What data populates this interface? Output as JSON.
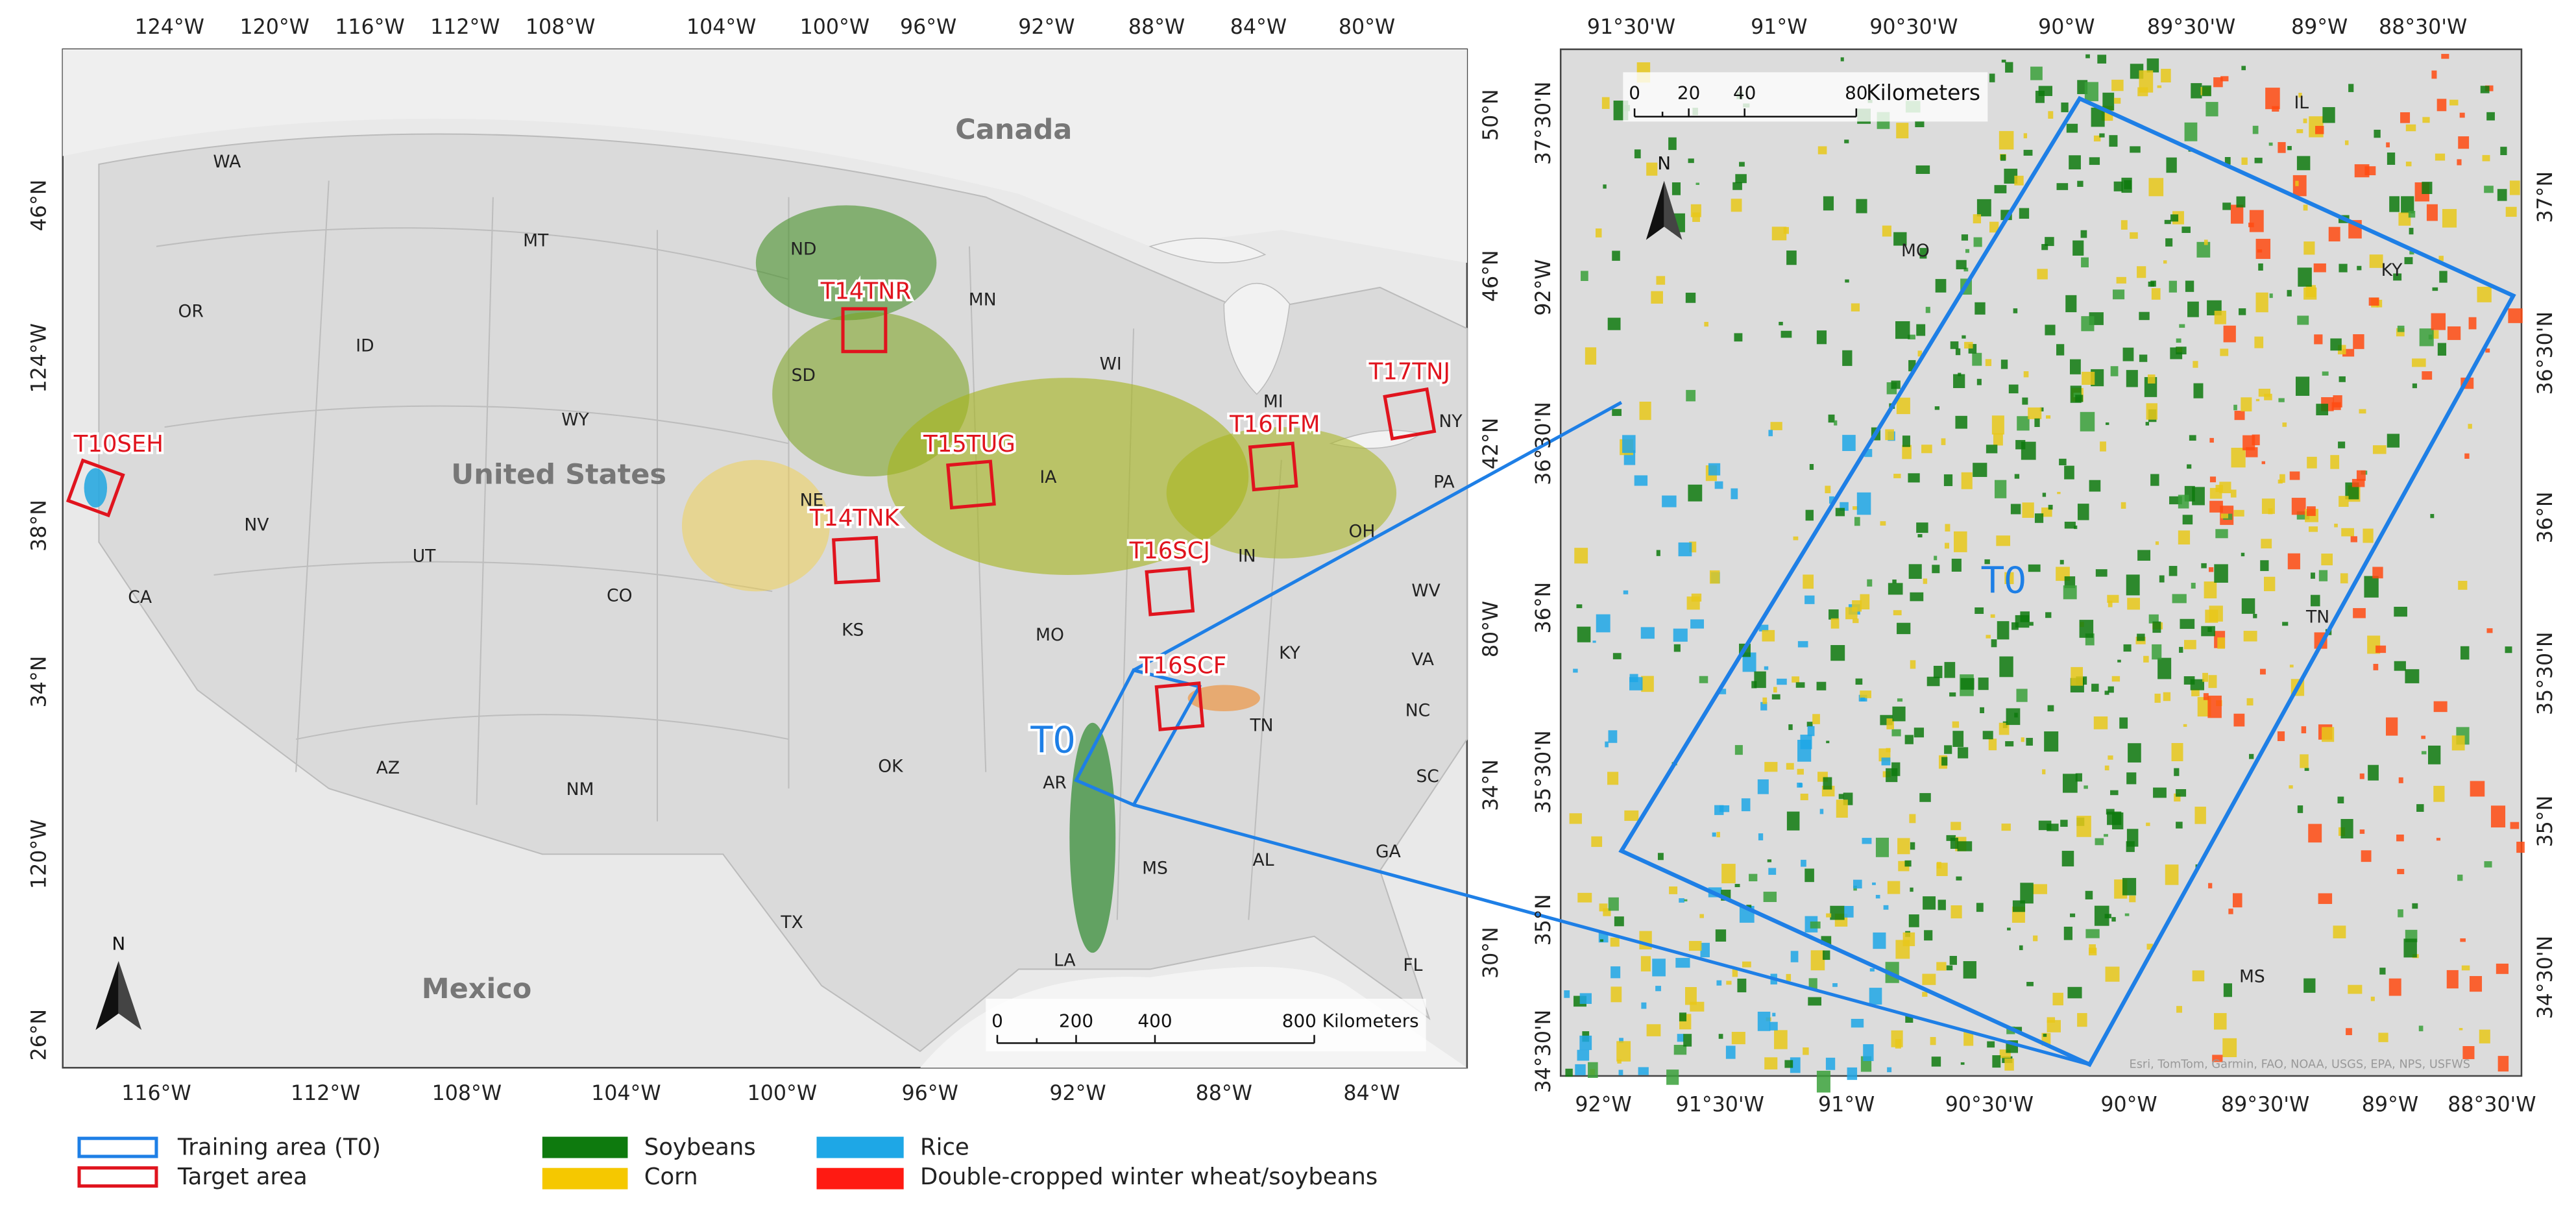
{
  "left_map": {
    "top_labels": [
      "124°W",
      "120°W",
      "116°W",
      "112°W",
      "108°W",
      "104°W",
      "100°W",
      "96°W",
      "92°W",
      "88°W",
      "84°W",
      "80°W"
    ],
    "bottom_labels": [
      "116°W",
      "112°W",
      "108°W",
      "104°W",
      "100°W",
      "96°W",
      "92°W",
      "88°W",
      "84°W"
    ],
    "left_labels": [
      "46°N",
      "124°W",
      "38°N",
      "34°N",
      "120°W",
      "26°N"
    ],
    "right_labels": [
      "50°N",
      "46°N",
      "42°N",
      "80°W",
      "34°N",
      "30°N"
    ],
    "countries": [
      "Canada",
      "United States",
      "Mexico"
    ],
    "states": [
      "WA",
      "OR",
      "ID",
      "MT",
      "WY",
      "NV",
      "UT",
      "CO",
      "CA",
      "AZ",
      "NM",
      "TX",
      "ND",
      "SD",
      "MN",
      "WI",
      "MI",
      "NE",
      "IA",
      "KS",
      "MO",
      "IN",
      "OH",
      "KY",
      "TN",
      "OK",
      "AR",
      "MS",
      "AL",
      "LA",
      "GA",
      "FL",
      "SC",
      "NC",
      "VA",
      "WV",
      "PA",
      "NY"
    ],
    "target_areas": [
      "T14TNR",
      "T17TNJ",
      "T10SEH",
      "T15TUG",
      "T16TFM",
      "T14TNK",
      "T16SCJ",
      "T16SCF"
    ],
    "training_area": "T0",
    "scale_bar": [
      "0",
      "200",
      "400",
      "800 Kilometers"
    ],
    "north": "N"
  },
  "right_map": {
    "top_labels": [
      "91°30'W",
      "91°W",
      "90°30'W",
      "90°W",
      "89°30'W",
      "89°W",
      "88°30'W"
    ],
    "bottom_labels": [
      "92°W",
      "91°30'W",
      "91°W",
      "90°30'W",
      "90°W",
      "89°30'W",
      "89°W",
      "88°30'W"
    ],
    "left_labels": [
      "37°30'N",
      "92°W",
      "36°30'N",
      "36°N",
      "35°30'N",
      "35°N",
      "34°30'N"
    ],
    "right_labels": [
      "37°N",
      "36°30'N",
      "36°N",
      "35°30'N",
      "35°N",
      "34°30'N"
    ],
    "places": [
      "IL",
      "MO",
      "KY",
      "TN",
      "MS"
    ],
    "training_area": "T0",
    "scale_bar": [
      "0",
      "20",
      "40",
      "80"
    ],
    "scale_unit": "Kilometers",
    "north": "N",
    "attribution": "Esri, TomTom, Garmin, FAO, NOAA, USGS, EPA, NPS, USFWS"
  },
  "legend": [
    "Training area (T0)",
    "Target area",
    "Soybeans",
    "Corn",
    "Rice",
    "Double-cropped winter wheat/soybeans"
  ]
}
